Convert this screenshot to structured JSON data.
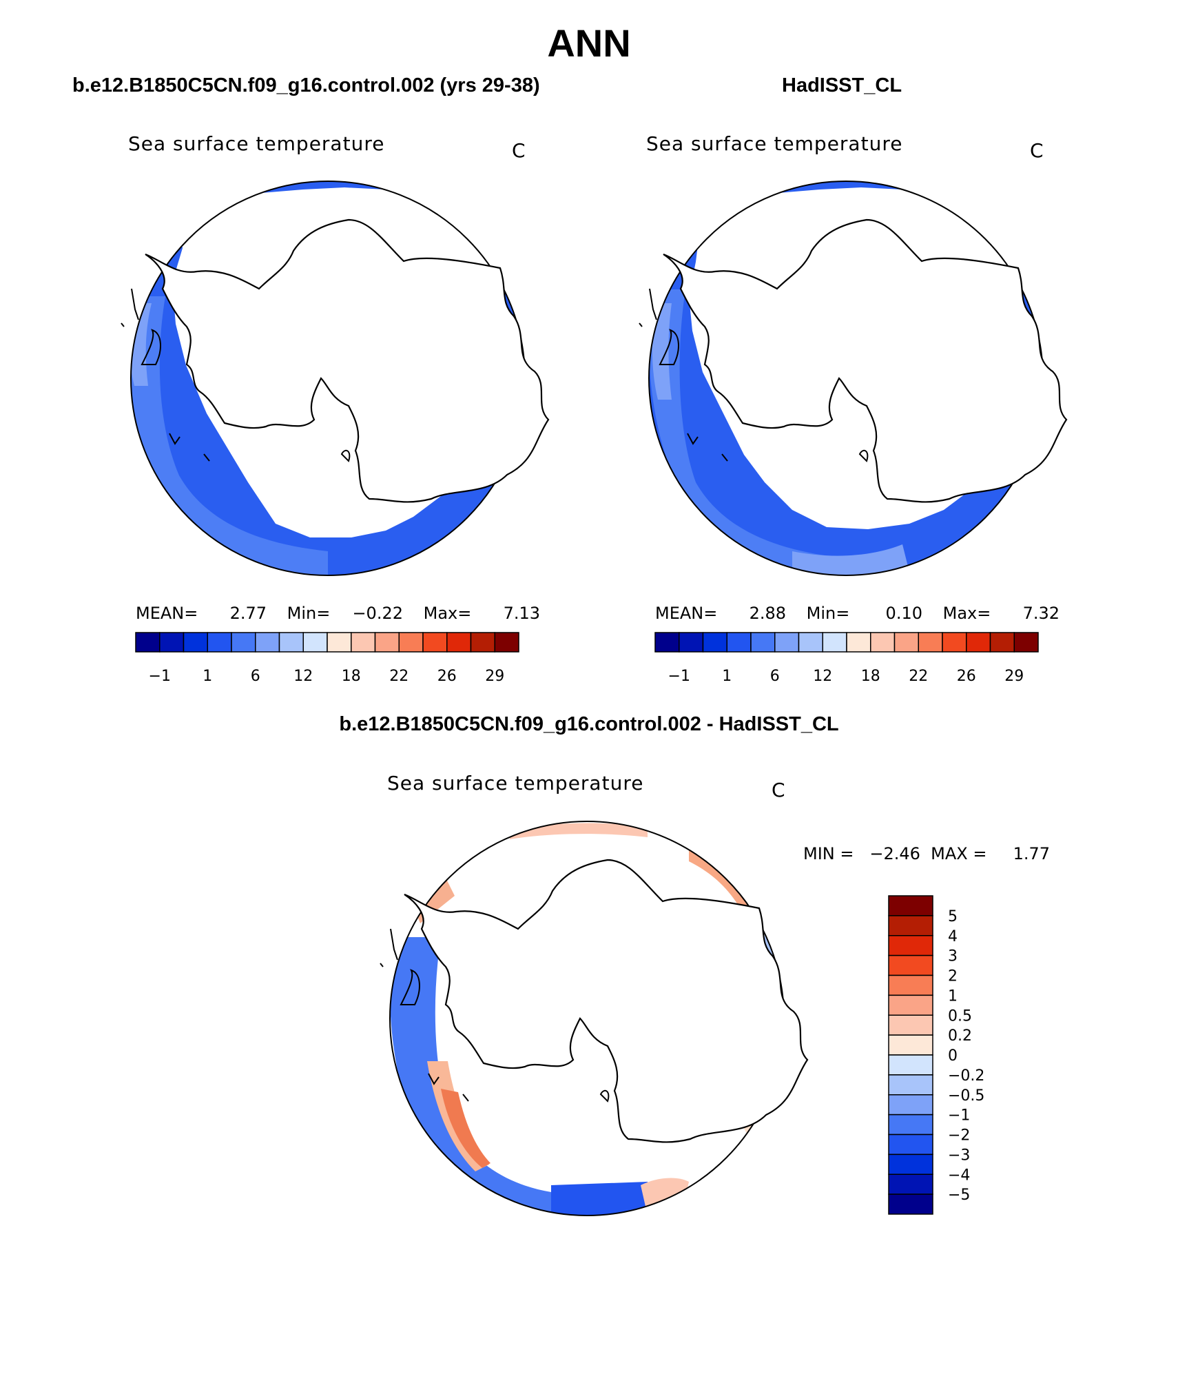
{
  "title": "ANN",
  "panels": {
    "model": {
      "subtitle": "b.e12.B1850C5CN.f09_g16.control.002 (yrs 29-38)",
      "variable": "Sea surface temperature",
      "units": "C",
      "stats": {
        "mean_label": "MEAN=",
        "mean": "2.77",
        "min_label": "Min=",
        "min": "−0.22",
        "max_label": "Max=",
        "max": "7.13"
      }
    },
    "obs": {
      "subtitle": "HadISST_CL",
      "variable": "Sea surface temperature",
      "units": "C",
      "stats": {
        "mean_label": "MEAN=",
        "mean": "2.88",
        "min_label": "Min=",
        "min": "0.10",
        "max_label": "Max=",
        "max": "7.32"
      }
    },
    "diff": {
      "subtitle": "b.e12.B1850C5CN.f09_g16.control.002 - HadISST_CL",
      "variable": "Sea surface temperature",
      "units": "C",
      "stats_text": "MIN =   −2.46  MAX =     1.77"
    }
  },
  "colorbar_field": {
    "colors": [
      "#00008c",
      "#0014b4",
      "#0032dc",
      "#2255f0",
      "#4678f5",
      "#7ea2f8",
      "#a8c4fa",
      "#d2e4fd",
      "#fde8d8",
      "#fcc7b2",
      "#faa487",
      "#f87d55",
      "#f24a20",
      "#e02808",
      "#b41e04",
      "#7d0000"
    ],
    "tick_labels": [
      "−1",
      "1",
      "6",
      "12",
      "18",
      "22",
      "26",
      "29"
    ]
  },
  "colorbar_diff": {
    "colors": [
      "#7d0000",
      "#b41e04",
      "#e02808",
      "#f24a20",
      "#f87d55",
      "#faa487",
      "#fcc7b2",
      "#fde8d8",
      "#d2e4fd",
      "#a8c4fa",
      "#7ea2f8",
      "#4678f5",
      "#2255f0",
      "#0032dc",
      "#0014b4",
      "#00008c"
    ],
    "tick_labels": [
      "5",
      "4",
      "3",
      "2",
      "1",
      "0.5",
      "0.2",
      "0",
      "−0.2",
      "−0.5",
      "−1",
      "−2",
      "−3",
      "−4",
      "−5"
    ]
  }
}
